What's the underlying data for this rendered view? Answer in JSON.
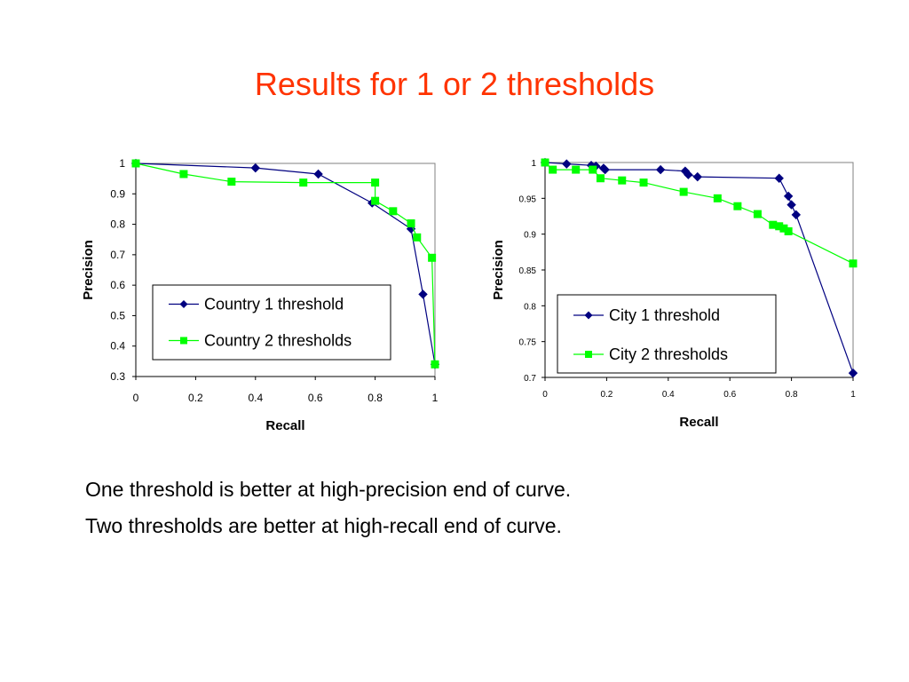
{
  "slide": {
    "title": "Results for 1 or 2 thresholds",
    "lines": [
      "One threshold is better at high-precision end of curve.",
      "Two thresholds are better at high-recall end of curve."
    ]
  },
  "colors": {
    "title": "#ff3300",
    "series1": "#000080",
    "series2": "#00ff00"
  },
  "chart_data": [
    {
      "type": "line",
      "xlabel": "Recall",
      "ylabel": "Precision",
      "xlim": [
        0,
        1
      ],
      "ylim": [
        0.3,
        1
      ],
      "xticks": [
        "0",
        "0.2",
        "0.4",
        "0.6",
        "0.8",
        "1"
      ],
      "yticks": [
        "0.3",
        "0.4",
        "0.5",
        "0.6",
        "0.7",
        "0.8",
        "0.9",
        "1"
      ],
      "legend_position": "center-right",
      "series": [
        {
          "name": "Country 1 threshold",
          "marker": "diamond",
          "x": [
            0.0,
            0.4,
            0.61,
            0.79,
            0.92,
            0.96,
            1.0
          ],
          "y": [
            1.0,
            0.985,
            0.965,
            0.87,
            0.785,
            0.57,
            0.34
          ]
        },
        {
          "name": "Country 2 thresholds",
          "marker": "square",
          "x": [
            0.0,
            0.16,
            0.32,
            0.56,
            0.8,
            0.8,
            0.86,
            0.92,
            0.94,
            0.99,
            1.0
          ],
          "y": [
            1.0,
            0.965,
            0.94,
            0.937,
            0.937,
            0.877,
            0.843,
            0.803,
            0.757,
            0.69,
            0.34
          ]
        }
      ]
    },
    {
      "type": "line",
      "xlabel": "Recall",
      "ylabel": "Precision",
      "xlim": [
        0,
        1
      ],
      "ylim": [
        0.7,
        1
      ],
      "xticks": [
        "0",
        "0.2",
        "0.4",
        "0.6",
        "0.8",
        "1"
      ],
      "yticks": [
        "0.7",
        "0.75",
        "0.8",
        "0.85",
        "0.9",
        "0.95",
        "1"
      ],
      "legend_position": "bottom-right",
      "series": [
        {
          "name": "City 1 threshold",
          "marker": "diamond",
          "x": [
            0.0,
            0.07,
            0.15,
            0.165,
            0.19,
            0.195,
            0.375,
            0.455,
            0.465,
            0.495,
            0.76,
            0.79,
            0.8,
            0.815,
            1.0
          ],
          "y": [
            1.0,
            0.998,
            0.996,
            0.995,
            0.992,
            0.99,
            0.99,
            0.988,
            0.983,
            0.98,
            0.978,
            0.953,
            0.941,
            0.927,
            0.706
          ]
        },
        {
          "name": "City 2 thresholds",
          "marker": "square",
          "x": [
            0.0,
            0.025,
            0.1,
            0.155,
            0.18,
            0.25,
            0.32,
            0.45,
            0.56,
            0.625,
            0.69,
            0.74,
            0.76,
            0.775,
            0.79,
            1.0
          ],
          "y": [
            1.0,
            0.99,
            0.99,
            0.99,
            0.978,
            0.975,
            0.972,
            0.959,
            0.95,
            0.939,
            0.928,
            0.913,
            0.911,
            0.908,
            0.904,
            0.859
          ]
        }
      ]
    }
  ]
}
